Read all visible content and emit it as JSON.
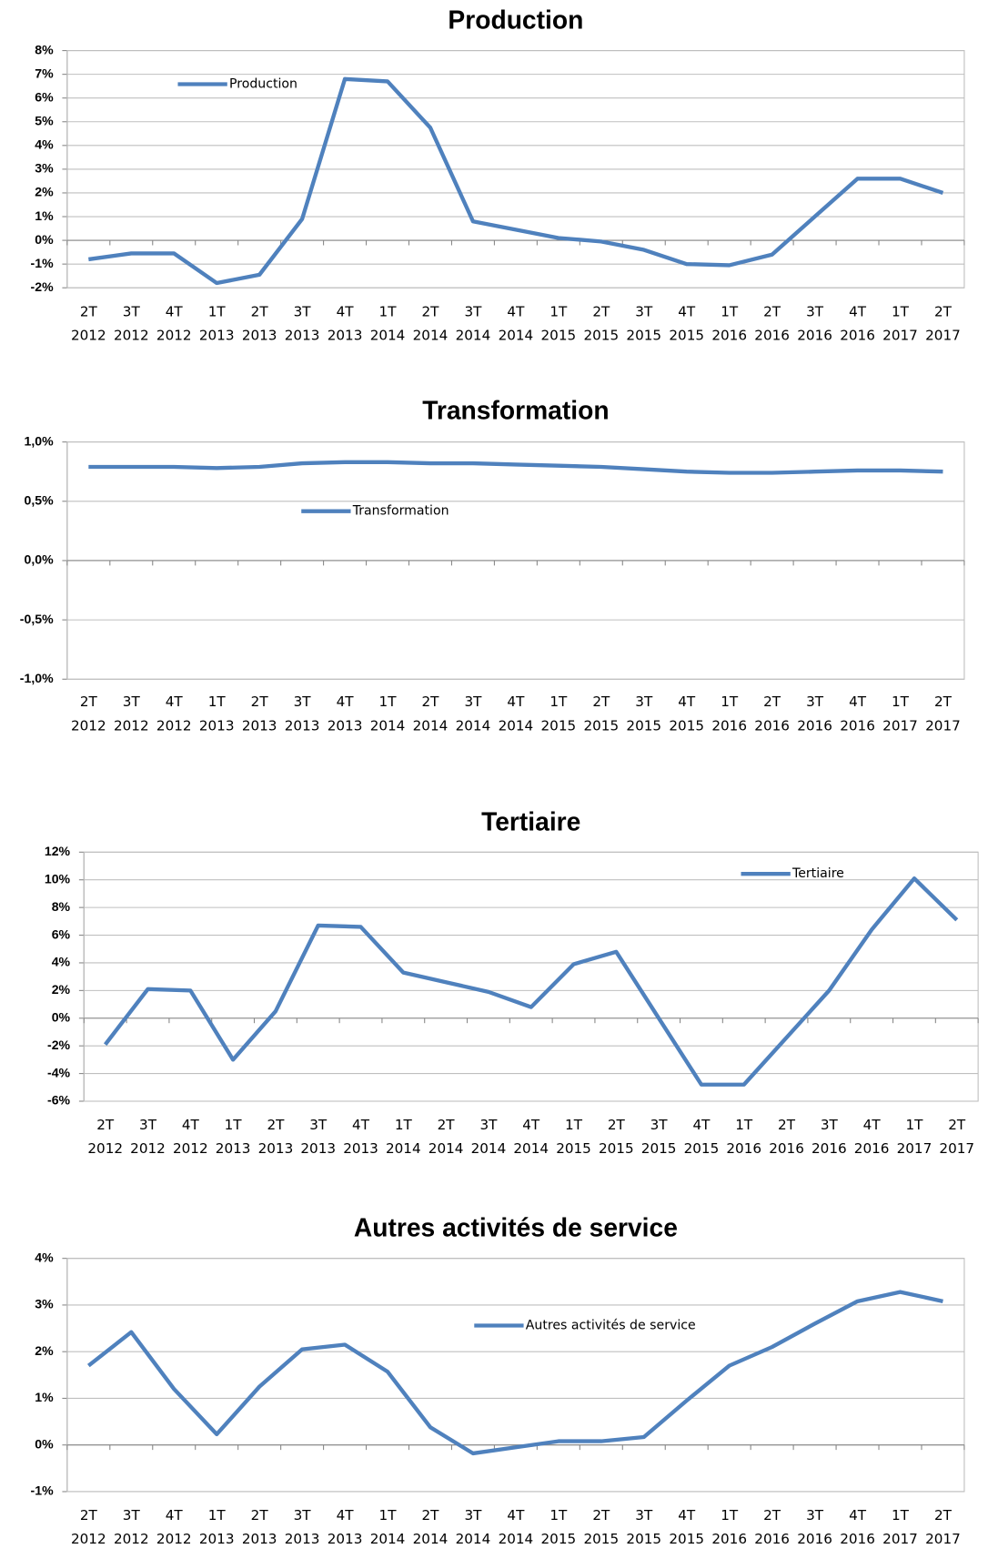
{
  "chart_data": [
    {
      "type": "line",
      "title": "Production",
      "categories": [
        "2T 2012",
        "3T 2012",
        "4T 2012",
        "1T 2013",
        "2T 2013",
        "3T 2013",
        "4T 2013",
        "1T 2014",
        "2T 2014",
        "3T 2014",
        "4T 2014",
        "1T 2015",
        "2T 2015",
        "3T 2015",
        "4T 2015",
        "1T 2016",
        "2T 2016",
        "3T 2016",
        "4T 2016",
        "1T 2017",
        "2T 2017"
      ],
      "series": [
        {
          "name": "Production",
          "color": "#4f81bd",
          "values": [
            -0.8,
            -0.55,
            -0.55,
            -1.8,
            -1.45,
            0.9,
            6.8,
            6.7,
            4.75,
            0.8,
            0.45,
            0.1,
            -0.05,
            -0.4,
            -1.0,
            -1.05,
            -0.6,
            1.0,
            2.6,
            2.6,
            2.0
          ]
        }
      ],
      "ylim": [
        -2,
        8
      ],
      "yticks": [
        {
          "value": -2,
          "label": "-2%"
        },
        {
          "value": -1,
          "label": "-1%"
        },
        {
          "value": 0,
          "label": "0%"
        },
        {
          "value": 1,
          "label": "1%"
        },
        {
          "value": 2,
          "label": "2%"
        },
        {
          "value": 3,
          "label": "3%"
        },
        {
          "value": 4,
          "label": "4%"
        },
        {
          "value": 5,
          "label": "5%"
        },
        {
          "value": 6,
          "label": "6%"
        },
        {
          "value": 7,
          "label": "7%"
        },
        {
          "value": 8,
          "label": "8%"
        }
      ],
      "grid": true
    },
    {
      "type": "line",
      "title": "Transformation",
      "categories": [
        "2T 2012",
        "3T 2012",
        "4T 2012",
        "1T 2013",
        "2T 2013",
        "3T 2013",
        "4T 2013",
        "1T 2014",
        "2T 2014",
        "3T 2014",
        "4T 2014",
        "1T 2015",
        "2T 2015",
        "3T 2015",
        "4T 2015",
        "1T 2016",
        "2T 2016",
        "3T 2016",
        "4T 2016",
        "1T 2017",
        "2T 2017"
      ],
      "series": [
        {
          "name": "Transformation",
          "color": "#4f81bd",
          "values": [
            0.79,
            0.79,
            0.79,
            0.78,
            0.79,
            0.82,
            0.83,
            0.83,
            0.82,
            0.82,
            0.81,
            0.8,
            0.79,
            0.77,
            0.75,
            0.74,
            0.74,
            0.75,
            0.76,
            0.76,
            0.75
          ]
        }
      ],
      "ylim": [
        -1,
        1
      ],
      "yticks": [
        {
          "value": -1,
          "label": "-1,0%"
        },
        {
          "value": -0.5,
          "label": "-0,5%"
        },
        {
          "value": 0,
          "label": "0,0%"
        },
        {
          "value": 0.5,
          "label": "0,5%"
        },
        {
          "value": 1,
          "label": "1,0%"
        }
      ],
      "grid": true
    },
    {
      "type": "line",
      "title": "Tertiaire",
      "categories": [
        "2T 2012",
        "3T 2012",
        "4T 2012",
        "1T 2013",
        "2T 2013",
        "3T 2013",
        "4T 2013",
        "1T 2014",
        "2T 2014",
        "3T 2014",
        "4T 2014",
        "1T 2015",
        "2T 2015",
        "3T 2015",
        "4T 2015",
        "1T 2016",
        "2T 2016",
        "3T 2016",
        "4T 2016",
        "1T 2017",
        "2T 2017"
      ],
      "series": [
        {
          "name": "Tertiaire",
          "color": "#4f81bd",
          "values": [
            -1.9,
            2.1,
            2.0,
            -3.0,
            0.5,
            6.7,
            6.6,
            3.3,
            2.6,
            1.9,
            0.8,
            3.9,
            4.8,
            0.0,
            -4.8,
            -4.8,
            -1.4,
            2.0,
            6.4,
            10.1,
            7.1
          ]
        }
      ],
      "ylim": [
        -6,
        12
      ],
      "yticks": [
        {
          "value": -6,
          "label": "-6%"
        },
        {
          "value": -4,
          "label": "-4%"
        },
        {
          "value": -2,
          "label": "-2%"
        },
        {
          "value": 0,
          "label": "0%"
        },
        {
          "value": 2,
          "label": "2%"
        },
        {
          "value": 4,
          "label": "4%"
        },
        {
          "value": 6,
          "label": "6%"
        },
        {
          "value": 8,
          "label": "8%"
        },
        {
          "value": 10,
          "label": "10%"
        },
        {
          "value": 12,
          "label": "12%"
        }
      ],
      "grid": true
    },
    {
      "type": "line",
      "title": "Autres activités de service",
      "categories": [
        "2T 2012",
        "3T 2012",
        "4T 2012",
        "1T 2013",
        "2T 2013",
        "3T 2013",
        "4T 2013",
        "1T 2014",
        "2T 2014",
        "3T 2014",
        "4T 2014",
        "1T 2015",
        "2T 2015",
        "3T 2015",
        "4T 2015",
        "1T 2016",
        "2T 2016",
        "3T 2016",
        "4T 2016",
        "1T 2017",
        "2T 2017"
      ],
      "series": [
        {
          "name": "Autres activités de service",
          "color": "#4f81bd",
          "values": [
            1.7,
            2.42,
            1.2,
            0.23,
            1.25,
            2.05,
            2.15,
            1.57,
            0.38,
            -0.18,
            -0.05,
            0.08,
            0.08,
            0.17,
            0.95,
            1.7,
            2.1,
            2.6,
            3.08,
            3.28,
            3.08
          ]
        }
      ],
      "ylim": [
        -1,
        4
      ],
      "yticks": [
        {
          "value": -1,
          "label": "-1%"
        },
        {
          "value": 0,
          "label": "0%"
        },
        {
          "value": 1,
          "label": "1%"
        },
        {
          "value": 2,
          "label": "2%"
        },
        {
          "value": 3,
          "label": "3%"
        },
        {
          "value": 4,
          "label": "4%"
        }
      ],
      "grid": true
    }
  ]
}
